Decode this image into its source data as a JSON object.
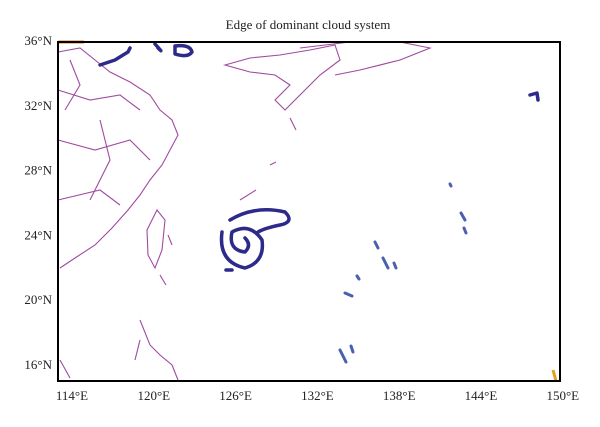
{
  "map": {
    "title": "Edge of dominant cloud system",
    "lat_labels": [
      "36°N",
      "32°N",
      "28°N",
      "24°N",
      "20°N",
      "16°N"
    ],
    "lon_labels": [
      "114°E",
      "120°E",
      "126°E",
      "132°E",
      "138°E",
      "144°E",
      "150°E"
    ]
  }
}
